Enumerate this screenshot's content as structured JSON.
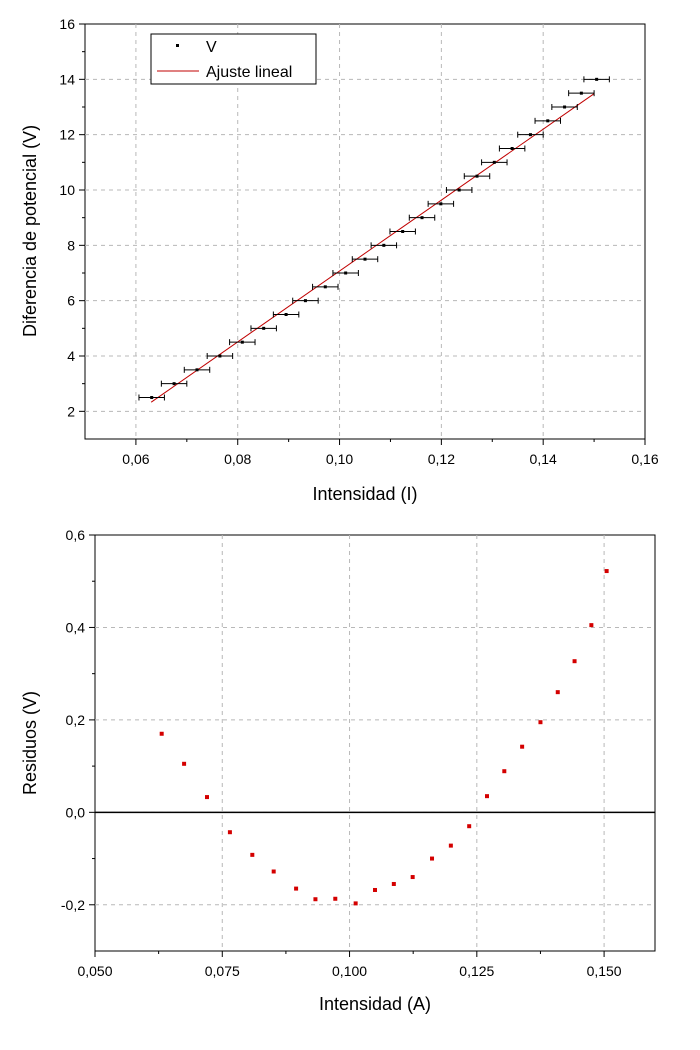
{
  "chart_data": [
    {
      "type": "scatter",
      "xlabel": "Intensidad (I)",
      "ylabel": "Diferencia de potencial (V)",
      "xlim": [
        0.05,
        0.16
      ],
      "ylim": [
        1,
        16
      ],
      "x_ticks": [
        0.06,
        0.08,
        0.1,
        0.12,
        0.14,
        0.16
      ],
      "x_tick_labels": [
        "0,06",
        "0,08",
        "0,10",
        "0,12",
        "0,14",
        "0,16"
      ],
      "y_ticks": [
        2,
        4,
        6,
        8,
        10,
        12,
        14,
        16
      ],
      "y_tick_labels": [
        "2",
        "4",
        "6",
        "8",
        "10",
        "12",
        "14",
        "16"
      ],
      "grid": true,
      "legend_placement": "top-left",
      "series": [
        {
          "name": "V",
          "kind": "points_with_x_error",
          "color": "#000000",
          "x": [
            0.0631,
            0.0675,
            0.072,
            0.0765,
            0.0809,
            0.0851,
            0.0895,
            0.0933,
            0.0972,
            0.1012,
            0.105,
            0.1087,
            0.1124,
            0.1162,
            0.1199,
            0.1235,
            0.127,
            0.1304,
            0.1339,
            0.1375,
            0.1409,
            0.1442,
            0.1475,
            0.1505
          ],
          "y": [
            2.5,
            3.0,
            3.5,
            4.0,
            4.5,
            5.0,
            5.5,
            6.0,
            6.5,
            7.0,
            7.5,
            8.0,
            8.5,
            9.0,
            9.5,
            10.0,
            10.5,
            11.0,
            11.5,
            12.0,
            12.5,
            13.0,
            13.5,
            14.0
          ],
          "x_error": 0.0025
        },
        {
          "name": "Ajuste lineal",
          "kind": "line",
          "color": "#c00000",
          "x": [
            0.063,
            0.15
          ],
          "y": [
            2.33,
            13.48
          ]
        }
      ]
    },
    {
      "type": "scatter",
      "xlabel": "Intensidad (A)",
      "ylabel": "Residuos (V)",
      "xlim": [
        0.05,
        0.16
      ],
      "ylim": [
        -0.3,
        0.6
      ],
      "x_ticks": [
        0.05,
        0.075,
        0.1,
        0.125,
        0.15
      ],
      "x_tick_labels": [
        "0,050",
        "0,075",
        "0,100",
        "0,125",
        "0,150"
      ],
      "y_ticks": [
        -0.2,
        0.0,
        0.2,
        0.4,
        0.6
      ],
      "y_tick_labels": [
        "-0,2",
        "0,0",
        "0,2",
        "0,4",
        "0,6"
      ],
      "grid": true,
      "zero_line": true,
      "series": [
        {
          "kind": "points",
          "color": "#d40000",
          "x": [
            0.0631,
            0.0675,
            0.072,
            0.0765,
            0.0809,
            0.0851,
            0.0895,
            0.0933,
            0.0972,
            0.1012,
            0.105,
            0.1087,
            0.1124,
            0.1162,
            0.1199,
            0.1235,
            0.127,
            0.1304,
            0.1339,
            0.1375,
            0.1409,
            0.1442,
            0.1475,
            0.1505
          ],
          "y": [
            0.17,
            0.105,
            0.033,
            -0.043,
            -0.092,
            -0.128,
            -0.165,
            -0.188,
            -0.187,
            -0.197,
            -0.168,
            -0.155,
            -0.14,
            -0.1,
            -0.072,
            -0.03,
            0.035,
            0.089,
            0.142,
            0.195,
            0.26,
            0.327,
            0.405,
            0.522
          ]
        }
      ]
    }
  ]
}
